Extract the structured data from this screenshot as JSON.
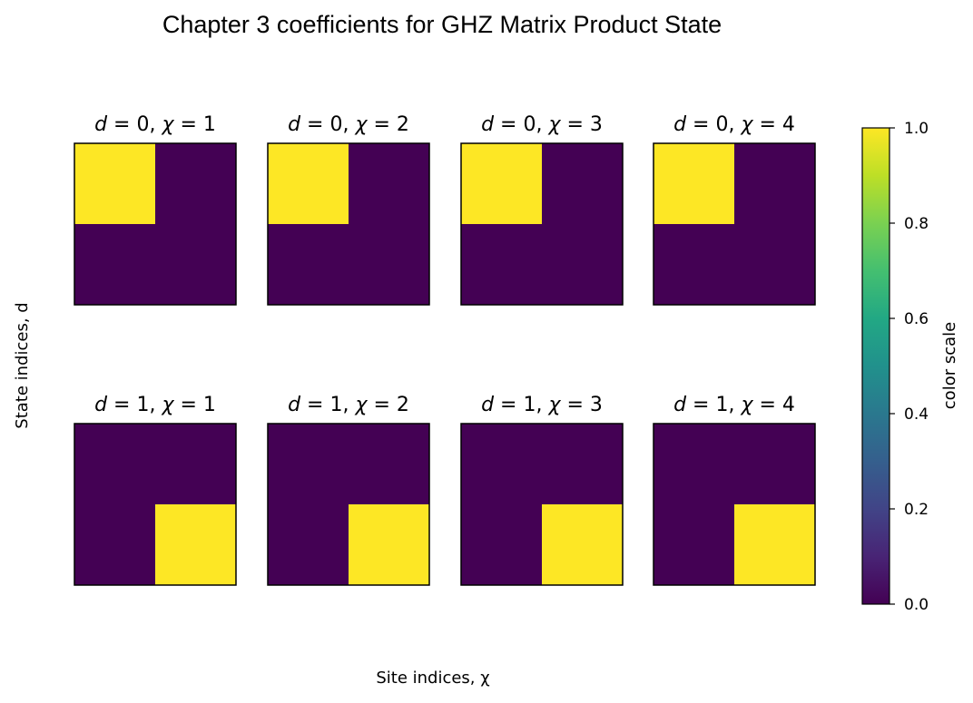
{
  "chart_data": {
    "type": "heatmap",
    "title": "Chapter 3 coefficients for GHZ Matrix Product State",
    "xlabel": "Site indices, χ",
    "ylabel": "State indices, d",
    "colorbar": {
      "label": "color scale",
      "colormap": "viridis",
      "range": [
        0.0,
        1.0
      ],
      "ticks": [
        "0.0",
        "0.2",
        "0.4",
        "0.6",
        "0.8",
        "1.0"
      ]
    },
    "grid": false,
    "colors": {
      "low": "#440154",
      "high": "#fde725"
    },
    "panels": [
      {
        "d": "0",
        "chi": "1",
        "matrix": [
          [
            1,
            0
          ],
          [
            0,
            0
          ]
        ]
      },
      {
        "d": "0",
        "chi": "2",
        "matrix": [
          [
            1,
            0
          ],
          [
            0,
            0
          ]
        ]
      },
      {
        "d": "0",
        "chi": "3",
        "matrix": [
          [
            1,
            0
          ],
          [
            0,
            0
          ]
        ]
      },
      {
        "d": "0",
        "chi": "4",
        "matrix": [
          [
            1,
            0
          ],
          [
            0,
            0
          ]
        ]
      },
      {
        "d": "1",
        "chi": "1",
        "matrix": [
          [
            0,
            0
          ],
          [
            0,
            1
          ]
        ]
      },
      {
        "d": "1",
        "chi": "2",
        "matrix": [
          [
            0,
            0
          ],
          [
            0,
            1
          ]
        ]
      },
      {
        "d": "1",
        "chi": "3",
        "matrix": [
          [
            0,
            0
          ],
          [
            0,
            1
          ]
        ]
      },
      {
        "d": "1",
        "chi": "4",
        "matrix": [
          [
            0,
            0
          ],
          [
            0,
            1
          ]
        ]
      }
    ]
  }
}
